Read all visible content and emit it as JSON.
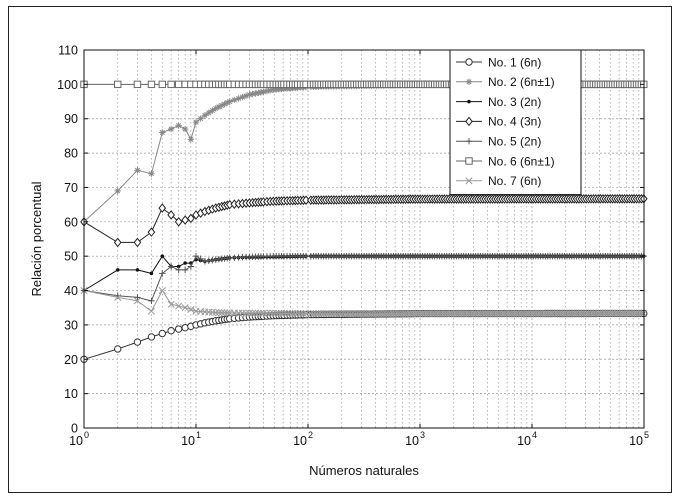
{
  "chart_data": {
    "type": "line",
    "title": "",
    "xlabel": "Números naturales",
    "ylabel": "Relación porcentual",
    "x_scale": "log",
    "xlim": [
      1,
      100000
    ],
    "ylim": [
      0,
      110
    ],
    "grid": true,
    "legend_position": "top-right",
    "x_ticks": [
      {
        "base": "10",
        "exp": "0"
      },
      {
        "base": "10",
        "exp": "1"
      },
      {
        "base": "10",
        "exp": "2"
      },
      {
        "base": "10",
        "exp": "3"
      },
      {
        "base": "10",
        "exp": "4"
      },
      {
        "base": "10",
        "exp": "5"
      }
    ],
    "y_ticks": [
      "0",
      "10",
      "20",
      "30",
      "40",
      "50",
      "60",
      "70",
      "80",
      "90",
      "100",
      "110"
    ],
    "series": [
      {
        "name": "No. 1 (6n)",
        "marker": "circle",
        "color": "#333333",
        "x": [
          1,
          2,
          3,
          4,
          5,
          6,
          7,
          8,
          9,
          10,
          12,
          15,
          20,
          30,
          50,
          100,
          1000,
          100000
        ],
        "y": [
          20,
          23,
          25,
          26.5,
          27.5,
          28.3,
          28.8,
          29.2,
          29.6,
          30,
          30.6,
          31.2,
          31.8,
          32.3,
          32.7,
          33,
          33.3,
          33.33
        ]
      },
      {
        "name": "No. 2 (6n±1)",
        "marker": "star",
        "color": "#888888",
        "x": [
          1,
          2,
          3,
          4,
          5,
          6,
          7,
          8,
          9,
          10,
          12,
          15,
          20,
          30,
          50,
          100,
          1000,
          100000
        ],
        "y": [
          60,
          69,
          75,
          74,
          86,
          87,
          88,
          87,
          84,
          89,
          91,
          93,
          95,
          97,
          98.5,
          99.3,
          99.9,
          100
        ]
      },
      {
        "name": "No. 3 (2n)",
        "marker": "dot",
        "color": "#111111",
        "x": [
          1,
          2,
          3,
          4,
          5,
          6,
          7,
          8,
          9,
          10,
          12,
          15,
          20,
          30,
          50,
          100,
          1000,
          100000
        ],
        "y": [
          40,
          46,
          46,
          45,
          50,
          47,
          47,
          48,
          48,
          49,
          48.5,
          49,
          49.5,
          49.7,
          49.8,
          50,
          50,
          50
        ]
      },
      {
        "name": "No. 4 (3n)",
        "marker": "diamond",
        "color": "#222222",
        "x": [
          1,
          2,
          3,
          4,
          5,
          6,
          7,
          8,
          9,
          10,
          12,
          15,
          20,
          30,
          50,
          100,
          1000,
          100000
        ],
        "y": [
          60,
          54,
          54,
          57,
          64,
          62,
          60,
          60.5,
          61,
          62,
          63,
          64,
          65,
          65.5,
          66,
          66.3,
          66.6,
          66.7
        ]
      },
      {
        "name": "No. 5 (2n)",
        "marker": "plus",
        "color": "#555555",
        "x": [
          1,
          2,
          3,
          4,
          5,
          6,
          7,
          8,
          9,
          10,
          12,
          15,
          20,
          30,
          50,
          100,
          1000,
          100000
        ],
        "y": [
          40,
          38.5,
          38,
          37,
          45,
          47,
          46,
          46,
          47,
          50,
          48.5,
          49,
          49.5,
          49.8,
          50,
          50,
          50,
          50
        ]
      },
      {
        "name": "No. 6 (6n±1)",
        "marker": "square",
        "color": "#666666",
        "x": [
          1,
          2,
          3,
          4,
          5,
          6,
          7,
          8,
          9,
          10,
          12,
          15,
          20,
          30,
          50,
          100,
          1000,
          100000
        ],
        "y": [
          100,
          100,
          100,
          100,
          100,
          100,
          100,
          100,
          100,
          100,
          100,
          100,
          100,
          100,
          100,
          100,
          100,
          100
        ]
      },
      {
        "name": "No. 7 (6n)",
        "marker": "x",
        "color": "#999999",
        "x": [
          1,
          2,
          3,
          4,
          5,
          6,
          7,
          8,
          9,
          10,
          12,
          15,
          20,
          30,
          50,
          100,
          1000,
          100000
        ],
        "y": [
          40,
          38,
          37,
          34,
          40,
          36,
          35.5,
          35,
          34.5,
          34,
          33.8,
          33.6,
          33.5,
          33.4,
          33.4,
          33.3,
          33.3,
          33.33
        ]
      }
    ]
  }
}
